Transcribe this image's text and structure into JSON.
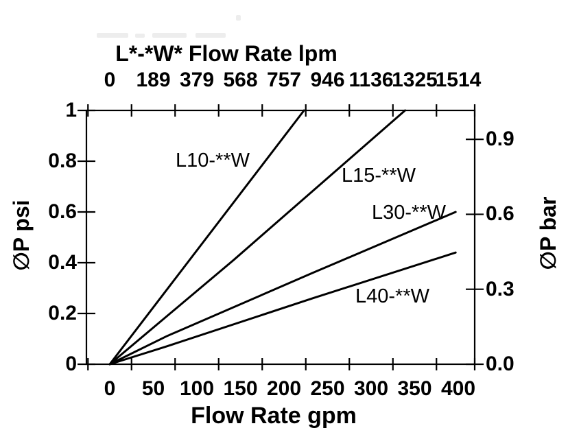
{
  "chart_data": {
    "type": "line",
    "title_top": "L*-*W* Flow Rate lpm",
    "xlabel": "Flow Rate gpm",
    "ylabel_left": "∅P psi",
    "ylabel_right": "∅P bar",
    "x_axis_bottom": {
      "unit": "gpm",
      "tick_values": [
        0,
        50,
        100,
        150,
        200,
        250,
        300,
        350,
        400
      ],
      "tick_labels": [
        "0",
        "50",
        "100",
        "150",
        "200",
        "250",
        "300",
        "350",
        "400"
      ],
      "minor_tick_marks_between_labels": true
    },
    "x_axis_top": {
      "unit": "lpm",
      "tick_labels": [
        "0",
        "189",
        "379",
        "568",
        "757",
        "946",
        "1136",
        "1325",
        "1514"
      ],
      "aligned_with_gpm_values": [
        0,
        50,
        100,
        150,
        200,
        250,
        300,
        350,
        400
      ]
    },
    "y_axis_left": {
      "unit": "psi",
      "tick_values": [
        1,
        0.8,
        0.6,
        0.4,
        0.2,
        0
      ],
      "tick_labels": [
        "1",
        "0.8",
        "0.6",
        "0.4",
        "0.2",
        "0"
      ],
      "range": [
        0,
        1
      ]
    },
    "y_axis_right": {
      "unit": "bar",
      "tick_values": [
        0.9,
        0.6,
        0.3,
        0.0
      ],
      "tick_labels": [
        "0.9",
        "0.6",
        "0.3",
        "0.0"
      ]
    },
    "grid": false,
    "legend": "inline-labels",
    "series": [
      {
        "name": "L10-**W",
        "points_gpm_psi": [
          [
            0,
            0
          ],
          [
            223,
            1.0
          ]
        ]
      },
      {
        "name": "L15-**W",
        "points_gpm_psi": [
          [
            0,
            0
          ],
          [
            142,
            0.41
          ],
          [
            339,
            1.0
          ]
        ]
      },
      {
        "name": "L30-**W",
        "points_gpm_psi": [
          [
            0,
            0
          ],
          [
            65,
            0.11
          ],
          [
            233,
            0.36
          ],
          [
            397,
            0.6
          ]
        ]
      },
      {
        "name": "L40-**W",
        "points_gpm_psi": [
          [
            0,
            0
          ],
          [
            65,
            0.07
          ],
          [
            233,
            0.26
          ],
          [
            397,
            0.44
          ]
        ]
      }
    ],
    "colors": {
      "line": "#000000",
      "background": "#ffffff",
      "text": "#000000"
    }
  }
}
